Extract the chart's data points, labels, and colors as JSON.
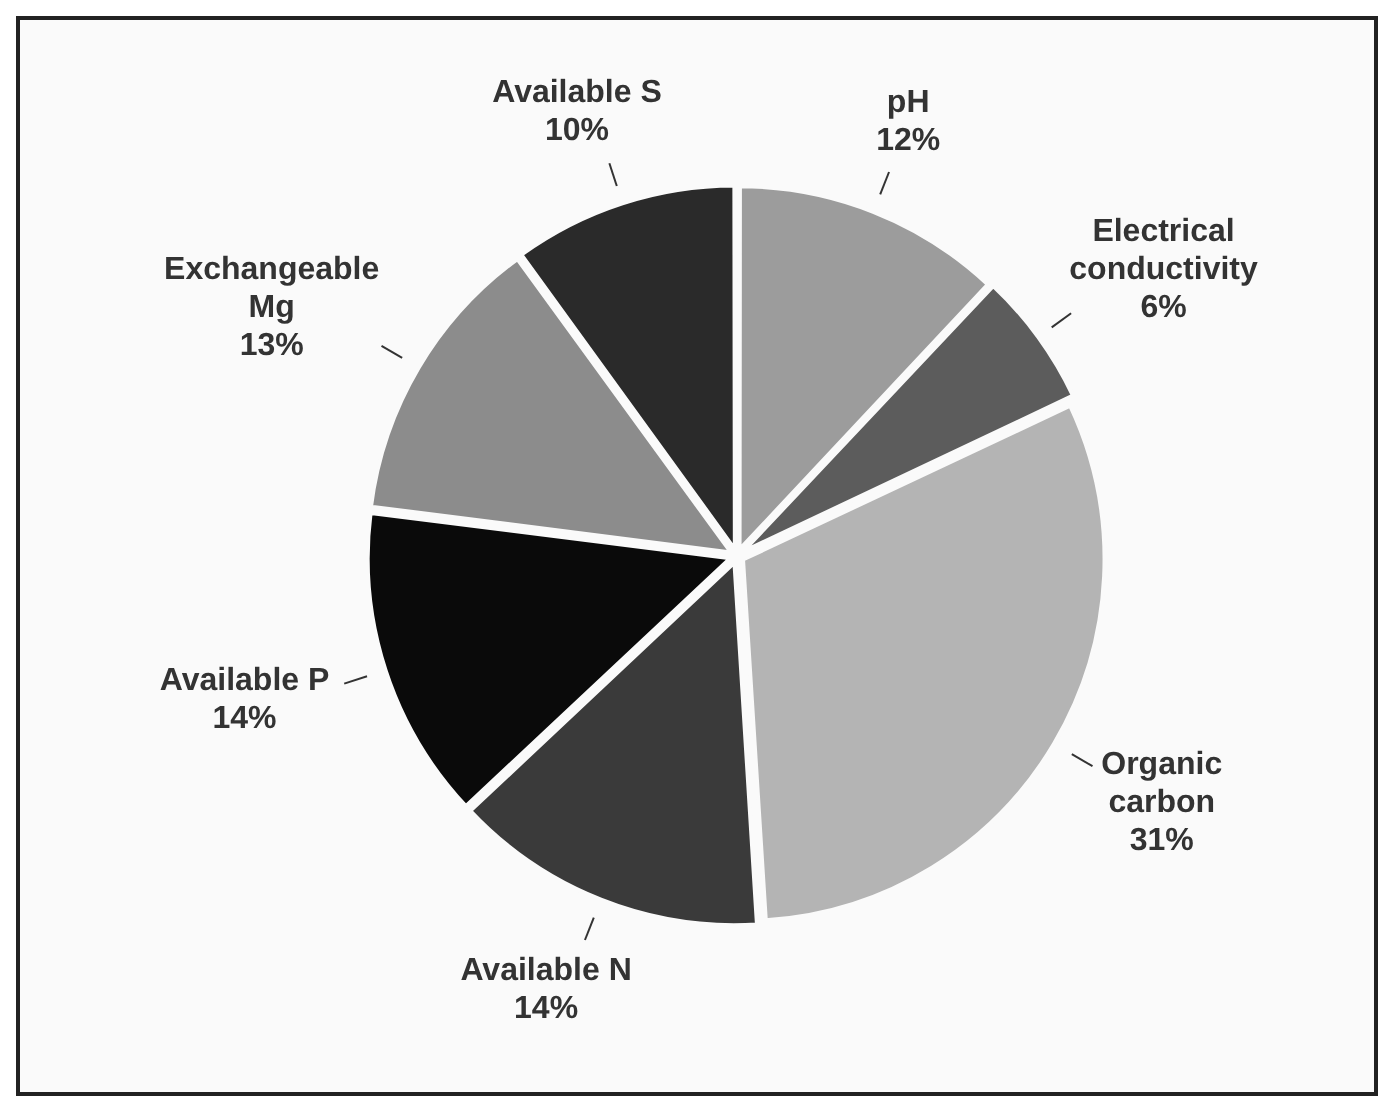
{
  "chart_data": {
    "type": "pie",
    "categories": [
      "pH",
      "Electrical conductivity",
      "Organic carbon",
      "Available N",
      "Available P",
      "Exchangeable Mg",
      "Available S"
    ],
    "values": [
      12,
      6,
      31,
      14,
      14,
      13,
      10
    ],
    "value_labels": [
      "12%",
      "6%",
      "31%",
      "14%",
      "14%",
      "13%",
      "10%"
    ],
    "colors": [
      "#9c9c9c",
      "#5c5c5c",
      "#b4b4b4",
      "#3a3a3a",
      "#0a0a0a",
      "#8c8c8c",
      "#2a2a2a"
    ]
  }
}
